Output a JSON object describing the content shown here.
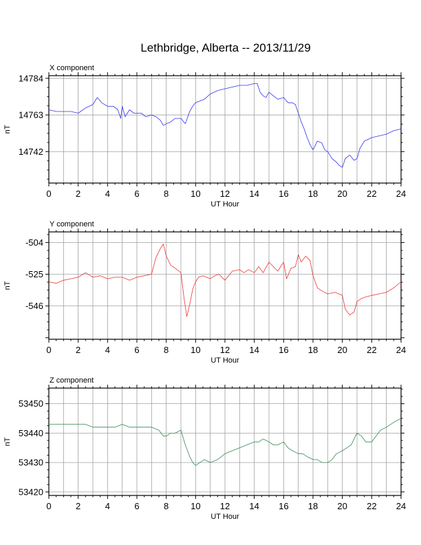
{
  "figure": {
    "title": "Lethbridge, Alberta -- 2013/11/29"
  },
  "chart_data": [
    {
      "type": "line",
      "panel_title": "X component",
      "xlabel": "UT Hour",
      "ylabel": "nT",
      "xlim": [
        0,
        24
      ],
      "ylim": [
        14724,
        14785.5
      ],
      "xticks": [
        "0",
        "2",
        "4",
        "6",
        "8",
        "10",
        "12",
        "14",
        "16",
        "18",
        "20",
        "22",
        "24"
      ],
      "yticks": [
        "14742",
        "14763",
        "14784"
      ],
      "ytick_values": [
        14742,
        14763,
        14784
      ],
      "grid": true,
      "color": "#3333ee",
      "series": [
        {
          "x": [
            0,
            0.5,
            1,
            1.5,
            2,
            2.5,
            3,
            3.3,
            3.6,
            4,
            4.4,
            4.7,
            4.9,
            5.0,
            5.2,
            5.5,
            5.8,
            6,
            6.3,
            6.6,
            7,
            7.3,
            7.6,
            7.8,
            8.0,
            8.3,
            8.6,
            9,
            9.3,
            9.6,
            9.8,
            10,
            10.3,
            10.6,
            11,
            11.5,
            12,
            12.5,
            13,
            13.5,
            14,
            14.2,
            14.4,
            14.6,
            14.8,
            15,
            15.3,
            15.6,
            16,
            16.3,
            16.6,
            16.8,
            17,
            17.2,
            17.4,
            17.6,
            17.8,
            18,
            18.3,
            18.6,
            18.8,
            19,
            19.3,
            19.6,
            19.8,
            20,
            20.2,
            20.5,
            20.8,
            21,
            21.2,
            21.5,
            22,
            22.5,
            23,
            23.5,
            24
          ],
          "y": [
            14766,
            14765,
            14765,
            14765,
            14764,
            14767,
            14769,
            14773,
            14770,
            14768,
            14768,
            14766,
            14761,
            14768,
            14762,
            14766,
            14764,
            14764,
            14764,
            14762,
            14763,
            14762,
            14760,
            14757,
            14758,
            14759,
            14761,
            14761,
            14758,
            14765,
            14768,
            14770,
            14771,
            14772,
            14775,
            14777,
            14778,
            14779,
            14780,
            14780,
            14781,
            14781,
            14776,
            14774,
            14773,
            14776,
            14774,
            14772,
            14773,
            14770,
            14770,
            14769,
            14764,
            14759,
            14755,
            14750,
            14746,
            14743,
            14748,
            14747,
            14743,
            14742,
            14738,
            14736,
            14734,
            14733,
            14738,
            14740,
            14737,
            14738,
            14744,
            14748,
            14750,
            14751,
            14752,
            14754,
            14755
          ]
        }
      ]
    },
    {
      "type": "line",
      "panel_title": "Y component",
      "xlabel": "UT Hour",
      "ylabel": "nT",
      "xlim": [
        0,
        24
      ],
      "ylim": [
        -568,
        -497
      ],
      "xticks": [
        "0",
        "2",
        "4",
        "6",
        "8",
        "10",
        "12",
        "14",
        "16",
        "18",
        "20",
        "22",
        "24"
      ],
      "yticks": [
        "-504",
        "-525",
        "-546"
      ],
      "ytick_values": [
        -504,
        -525,
        -546
      ],
      "grid": true,
      "color": "#ee3333",
      "series": [
        {
          "x": [
            0,
            0.5,
            1,
            1.5,
            2,
            2.5,
            3,
            3.5,
            4,
            4.5,
            5,
            5.5,
            6,
            6.5,
            7,
            7.3,
            7.6,
            7.8,
            8.0,
            8.3,
            8.6,
            9,
            9.2,
            9.4,
            9.6,
            9.8,
            10,
            10.2,
            10.5,
            11,
            11.3,
            11.6,
            12,
            12.5,
            13,
            13.3,
            13.6,
            14,
            14.3,
            14.6,
            15,
            15.3,
            15.6,
            16,
            16.2,
            16.5,
            16.8,
            17,
            17.2,
            17.5,
            17.8,
            18,
            18.3,
            18.6,
            19,
            19.5,
            20,
            20.2,
            20.5,
            20.8,
            21,
            21.3,
            21.6,
            22,
            22.5,
            23,
            23.5,
            24
          ],
          "y": [
            -530,
            -531,
            -529,
            -528,
            -527,
            -524,
            -527,
            -526,
            -528,
            -527,
            -527,
            -529,
            -527,
            -526,
            -525,
            -514,
            -508,
            -505,
            -513,
            -519,
            -521,
            -524,
            -540,
            -553,
            -545,
            -535,
            -530,
            -527,
            -526,
            -528,
            -526,
            -525,
            -529,
            -523,
            -522,
            -524,
            -522,
            -524,
            -520,
            -524,
            -517,
            -520,
            -523,
            -517,
            -528,
            -521,
            -520,
            -512,
            -517,
            -513,
            -516,
            -526,
            -534,
            -536,
            -538,
            -537,
            -539,
            -548,
            -552,
            -550,
            -543,
            -541,
            -540,
            -539,
            -538,
            -537,
            -534,
            -530
          ]
        }
      ]
    },
    {
      "type": "line",
      "panel_title": "Z component",
      "xlabel": "UT Hour",
      "ylabel": "nT",
      "xlim": [
        0,
        24
      ],
      "ylim": [
        53418.8,
        53455.3
      ],
      "xticks": [
        "0",
        "2",
        "4",
        "6",
        "8",
        "10",
        "12",
        "14",
        "16",
        "18",
        "20",
        "22",
        "24"
      ],
      "yticks": [
        "53420",
        "53430",
        "53440",
        "53450"
      ],
      "ytick_values": [
        53420,
        53430,
        53440,
        53450
      ],
      "grid": true,
      "color": "#338855",
      "series": [
        {
          "x": [
            0,
            0.5,
            1,
            1.5,
            2,
            2.5,
            3,
            3.5,
            4,
            4.5,
            5,
            5.5,
            6,
            6.5,
            7,
            7.5,
            7.8,
            8,
            8.3,
            8.6,
            9,
            9.3,
            9.6,
            9.8,
            10,
            10.3,
            10.6,
            11,
            11.5,
            12,
            12.5,
            13,
            13.5,
            14,
            14.3,
            14.6,
            15,
            15.3,
            15.6,
            16,
            16.3,
            16.6,
            17,
            17.3,
            17.6,
            18,
            18.3,
            18.6,
            19,
            19.3,
            19.6,
            20,
            20.3,
            20.6,
            20.8,
            21,
            21.3,
            21.6,
            22,
            22.3,
            22.6,
            23,
            23.3,
            23.6,
            24
          ],
          "y": [
            53443,
            53443,
            53443,
            53443,
            53443,
            53443,
            53442,
            53442,
            53442,
            53442,
            53443,
            53442,
            53442,
            53442,
            53442,
            53441,
            53439,
            53439,
            53440,
            53440,
            53441,
            53436,
            53432,
            53430,
            53429,
            53430,
            53431,
            53430,
            53431,
            53433,
            53434,
            53435,
            53436,
            53437,
            53437,
            53438,
            53437,
            53436,
            53436,
            53437,
            53435,
            53434,
            53433,
            53433,
            53432,
            53431,
            53431,
            53430,
            53430,
            53431,
            53433,
            53434,
            53435,
            53436,
            53438,
            53440,
            53439,
            53437,
            53437,
            53439,
            53441,
            53442,
            53443,
            53444,
            53445
          ]
        }
      ]
    }
  ]
}
